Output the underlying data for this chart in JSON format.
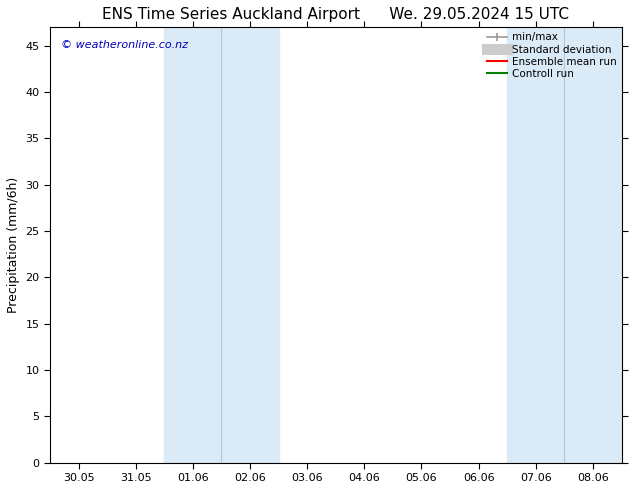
{
  "title_left": "ENS Time Series Auckland Airport",
  "title_right": "We. 29.05.2024 15 UTC",
  "ylabel": "Precipitation (mm/6h)",
  "watermark": "© weatheronline.co.nz",
  "xticklabels": [
    "30.05",
    "31.05",
    "01.06",
    "02.06",
    "03.06",
    "04.06",
    "05.06",
    "06.06",
    "07.06",
    "08.06"
  ],
  "xtick_values": [
    0,
    1,
    2,
    3,
    4,
    5,
    6,
    7,
    8,
    9
  ],
  "ylim": [
    0,
    47
  ],
  "yticks": [
    0,
    5,
    10,
    15,
    20,
    25,
    30,
    35,
    40,
    45
  ],
  "xlim": [
    -0.5,
    9.5
  ],
  "shaded_regions": [
    {
      "x_start": 1.5,
      "x_end": 3.5,
      "color": "#daeaf7"
    },
    {
      "x_start": 7.5,
      "x_end": 9.5,
      "color": "#daeaf7"
    }
  ],
  "inner_lines": [
    {
      "x": 2.5,
      "x_start": 1.5,
      "x_end": 3.5
    },
    {
      "x": 8.5,
      "x_start": 7.5,
      "x_end": 9.5
    }
  ],
  "legend_entries": [
    {
      "label": "min/max",
      "color": "#999999",
      "lw": 1.5,
      "style": "minmax"
    },
    {
      "label": "Standard deviation",
      "color": "#cccccc",
      "lw": 8,
      "style": "thick"
    },
    {
      "label": "Ensemble mean run",
      "color": "#ff0000",
      "lw": 1.5,
      "style": "line"
    },
    {
      "label": "Controll run",
      "color": "#008000",
      "lw": 1.5,
      "style": "line"
    }
  ],
  "watermark_color": "#0000bb",
  "background_color": "#ffffff",
  "title_fontsize": 11,
  "axis_fontsize": 9,
  "tick_fontsize": 8,
  "legend_fontsize": 7.5
}
